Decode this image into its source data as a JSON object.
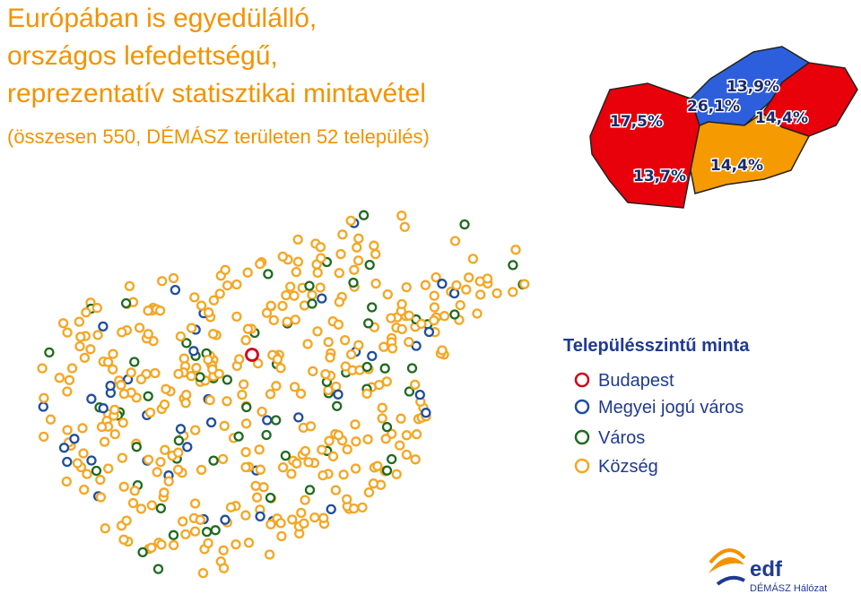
{
  "header": {
    "title_lines": [
      "Európában is egyedülálló,",
      "országos lefedettségű,",
      "reprezentatív statisztikai mintavétel"
    ],
    "subtitle": "(összesen 550, DÉMÁSZ területen 52 település)"
  },
  "regions": [
    {
      "label": "17,5%"
    },
    {
      "label": "13,7%"
    },
    {
      "label": "26,1%"
    },
    {
      "label": "13,9%"
    },
    {
      "label": "14,4%"
    },
    {
      "label": "14,4%"
    }
  ],
  "legend": {
    "title": "Településszintű minta",
    "items": [
      {
        "label": "Budapest",
        "color": "#d0021b"
      },
      {
        "label": "Megyei jogú város",
        "color": "#1f4e9c"
      },
      {
        "label": "Város",
        "color": "#1e6b1e"
      },
      {
        "label": "Község",
        "color": "#f5a623"
      }
    ]
  },
  "logo": {
    "brand": "edf",
    "subtitle": "DÉMÁSZ Hálózat"
  }
}
